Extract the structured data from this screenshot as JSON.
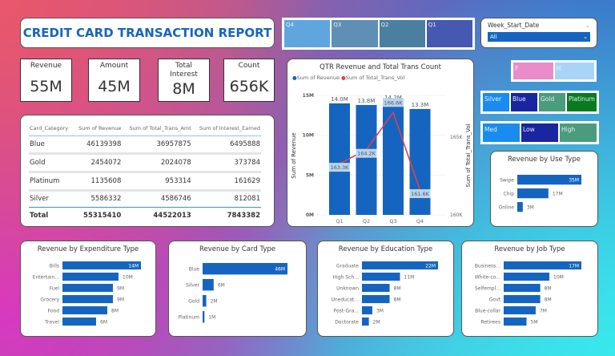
{
  "title": "CREDIT CARD TRANSACTION REPORT",
  "kpis": [
    {
      "label": "Revenue",
      "value": "55M"
    },
    {
      "label": "Amount",
      "value": "45M"
    },
    {
      "label": "Total Interest",
      "value": "8M"
    },
    {
      "label": "Count",
      "value": "656K"
    }
  ],
  "table": {
    "headers": [
      "Card_Category",
      "Sum of Revenue",
      "Sum of Total_Trans_Amt",
      "Sum of Interest_Earned"
    ],
    "rows": [
      [
        "Blue",
        "46139398",
        "36957875",
        "6495888"
      ],
      [
        "Gold",
        "2454072",
        "2024078",
        "373784"
      ],
      [
        "Platinum",
        "1135608",
        "953314",
        "161629"
      ],
      [
        "Silver",
        "5586332",
        "4586746",
        "812081"
      ]
    ],
    "total": [
      "Total",
      "55315410",
      "44522013",
      "7843382"
    ]
  },
  "quarter_slicer": [
    {
      "label": "Q4",
      "color": "#5fa6de"
    },
    {
      "label": "Q3",
      "color": "#5f8fb4"
    },
    {
      "label": "Q2",
      "color": "#4a7fa0"
    },
    {
      "label": "Q1",
      "color": "#4658b0"
    }
  ],
  "week_slicer": {
    "label": "Week_Start_Date",
    "value": "All"
  },
  "gender_slicer": [
    {
      "label": "F",
      "color": "#ea8cca"
    },
    {
      "label": "M",
      "color": "#a8d4f8"
    }
  ],
  "card_slicer": [
    {
      "label": "Silver",
      "color": "#1a8cf0"
    },
    {
      "label": "Blue",
      "color": "#1a25a0"
    },
    {
      "label": "Gold",
      "color": "#4a9c7c"
    },
    {
      "label": "Platinum",
      "color": "#0a7a20"
    }
  ],
  "income_slicer": [
    {
      "label": "Med",
      "color": "#1a8cf0"
    },
    {
      "label": "Low",
      "color": "#1a25a0"
    },
    {
      "label": "High",
      "color": "#4a9c7c"
    }
  ],
  "chart_data": [
    {
      "type": "bar+line",
      "title": "QTR Revenue and Total Trans Count",
      "categories": [
        "Q1",
        "Q2",
        "Q3",
        "Q4"
      ],
      "series": [
        {
          "name": "Sum of Revenue",
          "values": [
            14.0,
            13.8,
            14.2,
            13.3
          ],
          "labels": [
            "14.0M",
            "13.8M",
            "14.2M",
            "13.3M"
          ],
          "color": "#1565c0"
        },
        {
          "name": "Sum of Total_Trans_Vol",
          "values": [
            163.3,
            164.2,
            166.6,
            161.6
          ],
          "labels": [
            "163.3K",
            "164.2K",
            "166.6K",
            "161.6K"
          ],
          "color": "#e04050"
        }
      ],
      "ylabel": "Sum of Revenue",
      "y2label": "Sum of Total_Trans_Vol",
      "yticks": [
        "0M",
        "5M",
        "10M",
        "15M"
      ],
      "y2ticks": [
        "160K",
        "165K"
      ],
      "ylim": [
        0,
        15
      ],
      "y2lim": [
        160,
        167.7
      ]
    },
    {
      "type": "bar",
      "title": "Revenue by Use Type",
      "categories": [
        "Swipe",
        "Chip",
        "Online"
      ],
      "values": [
        35,
        17,
        3
      ],
      "labels": [
        "35M",
        "17M",
        "3M"
      ]
    },
    {
      "type": "bar",
      "title": "Revenue by Expenditure Type",
      "categories": [
        "Bills",
        "Entertain...",
        "Fuel",
        "Grocery",
        "Food",
        "Travel"
      ],
      "values": [
        14,
        10,
        9,
        9,
        8,
        6
      ],
      "labels": [
        "14M",
        "10M",
        "9M",
        "9M",
        "8M",
        "6M"
      ]
    },
    {
      "type": "bar",
      "title": "Revenue by Card Type",
      "categories": [
        "Blue",
        "Silver",
        "Gold",
        "Platinum"
      ],
      "values": [
        46,
        6,
        2,
        1
      ],
      "labels": [
        "46M",
        "6M",
        "2M",
        "1M"
      ]
    },
    {
      "type": "bar",
      "title": "Revenue by Education Type",
      "categories": [
        "Graduate",
        "High Sch...",
        "Unknown",
        "Uneducat...",
        "Post-Gra...",
        "Doctorate"
      ],
      "values": [
        22,
        11,
        8,
        8,
        3,
        2
      ],
      "labels": [
        "22M",
        "11M",
        "8M",
        "8M",
        "3M",
        "2M"
      ]
    },
    {
      "type": "bar",
      "title": "Revenue by Job Type",
      "categories": [
        "Business...",
        "White-co...",
        "Selfempl...",
        "Govt",
        "Blue-collar",
        "Retirees"
      ],
      "values": [
        17,
        10,
        8,
        8,
        7,
        5
      ],
      "labels": [
        "17M",
        "10M",
        "8M",
        "8M",
        "7M",
        "5M"
      ]
    }
  ]
}
